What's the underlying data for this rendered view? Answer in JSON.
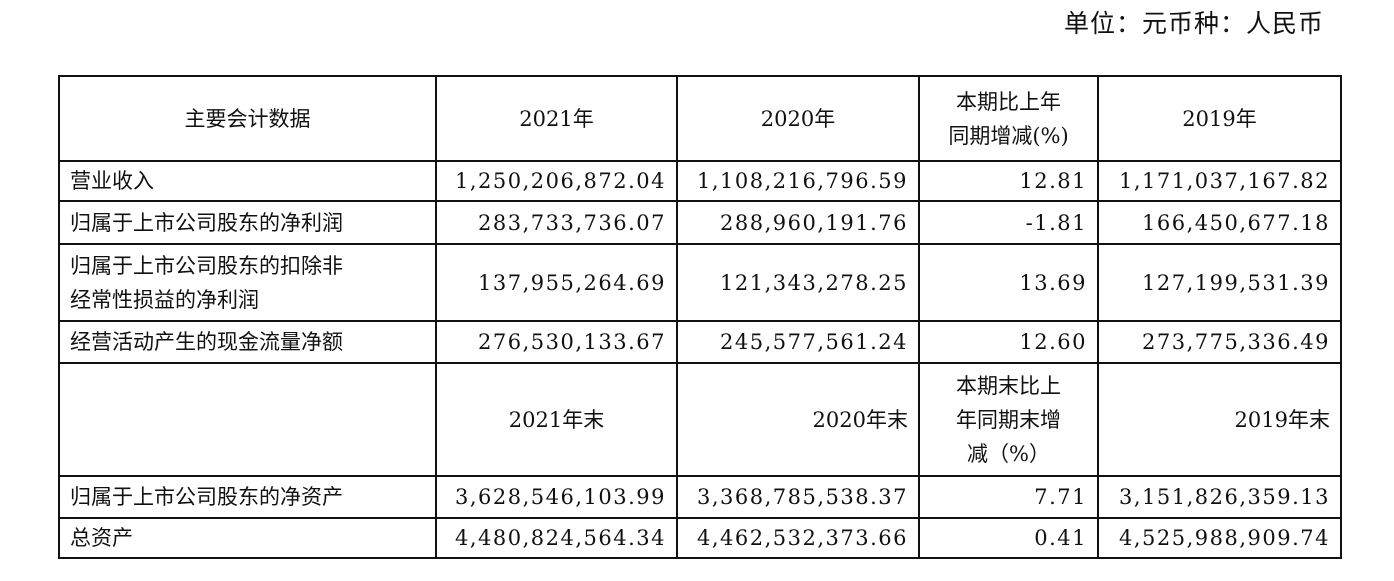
{
  "unit_note": "单位：元币种：人民币",
  "header": [
    "主要会计数据",
    "2021年",
    "2020年",
    "本期比上年\n同期增减(%)",
    "2019年"
  ],
  "rows": [
    {
      "label": "营业收入",
      "v2021": "1,250,206,872.04",
      "v2020": "1,108,216,796.59",
      "change": "12.81",
      "v2019": "1,171,037,167.82"
    },
    {
      "label": "归属于上市公司股东的净利润",
      "v2021": "283,733,736.07",
      "v2020": "288,960,191.76",
      "change": "-1.81",
      "v2019": "166,450,677.18"
    },
    {
      "label": "归属于上市公司股东的扣除非\n经常性损益的净利润",
      "v2021": "137,955,264.69",
      "v2020": "121,343,278.25",
      "change": "13.69",
      "v2019": "127,199,531.39"
    },
    {
      "label": "经营活动产生的现金流量净额",
      "v2021": "276,530,133.67",
      "v2020": "245,577,561.24",
      "change": "12.60",
      "v2019": "273,775,336.49"
    }
  ],
  "header2": [
    "",
    "2021年末",
    "2020年末",
    "本期末比上\n年同期末增\n减（%）",
    "2019年末"
  ],
  "rows2": [
    {
      "label": "归属于上市公司股东的净资产",
      "v2021": "3,628,546,103.99",
      "v2020": "3,368,785,538.37",
      "change": "7.71",
      "v2019": "3,151,826,359.13"
    },
    {
      "label": "总资产",
      "v2021": "4,480,824,564.34",
      "v2020": "4,462,532,373.66",
      "change": "0.41",
      "v2019": "4,525,988,909.74"
    }
  ]
}
